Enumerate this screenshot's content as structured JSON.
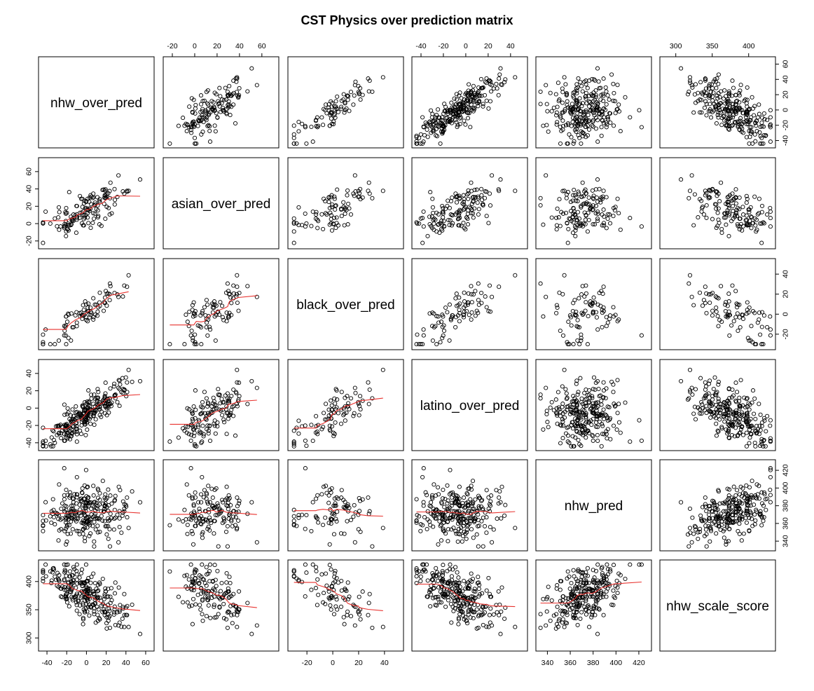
{
  "chart_data": {
    "type": "scatter",
    "title": "CST Physics over prediction matrix",
    "variables": [
      {
        "name": "nhw_over_pred",
        "range": [
          -45,
          65
        ],
        "ticks": [
          -40,
          -20,
          0,
          20,
          40,
          60
        ]
      },
      {
        "name": "asian_over_pred",
        "range": [
          -25,
          72
        ],
        "ticks": [
          -20,
          0,
          20,
          40,
          60
        ]
      },
      {
        "name": "black_over_pred",
        "range": [
          -32,
          52
        ],
        "ticks": [
          -20,
          0,
          20,
          40
        ]
      },
      {
        "name": "latino_over_pred",
        "range": [
          -45,
          52
        ],
        "ticks": [
          -40,
          -20,
          0,
          20,
          40
        ]
      },
      {
        "name": "nhw_pred",
        "range": [
          333,
          428
        ],
        "ticks": [
          340,
          360,
          380,
          400,
          420
        ]
      },
      {
        "name": "nhw_scale_score",
        "range": [
          283,
          432
        ],
        "ticks": [
          300,
          350,
          400
        ]
      }
    ],
    "axis_placement": {
      "top": [
        1,
        3,
        5
      ],
      "bottom": [
        0,
        2,
        4
      ],
      "right": [
        0,
        2,
        4
      ],
      "left": [
        1,
        3,
        5
      ]
    },
    "panels": {
      "upper": "points",
      "lower": "points with red smoothing curve"
    },
    "smoothing_color": "#e8322e",
    "point_color": "#000000",
    "sample_sizes": {
      "nhw_over_pred": 260,
      "asian_over_pred": 140,
      "black_over_pred": 85,
      "latino_over_pred": 260,
      "nhw_pred": 260,
      "nhw_scale_score": 260
    },
    "approx_relationships": [
      {
        "x": "nhw_over_pred",
        "y": "asian_over_pred",
        "slope": 0.65,
        "intercept": 16
      },
      {
        "x": "nhw_over_pred",
        "y": "black_over_pred",
        "slope": 0.72,
        "intercept": 2
      },
      {
        "x": "nhw_over_pred",
        "y": "latino_over_pred",
        "slope": 0.8,
        "intercept": -7
      },
      {
        "x": "nhw_over_pred",
        "y": "nhw_pred",
        "slope": 0.05,
        "intercept": 372
      },
      {
        "x": "nhw_over_pred",
        "y": "nhw_scale_score",
        "slope": -0.95,
        "intercept": 372
      },
      {
        "x": "asian_over_pred",
        "y": "black_over_pred",
        "slope": 0.6,
        "intercept": -3
      },
      {
        "x": "asian_over_pred",
        "y": "latino_over_pred",
        "slope": 0.55,
        "intercept": -14
      },
      {
        "x": "asian_over_pred",
        "y": "nhw_pred",
        "slope": 0.3,
        "intercept": 368
      },
      {
        "x": "asian_over_pred",
        "y": "nhw_scale_score",
        "slope": -0.3,
        "intercept": 376
      },
      {
        "x": "black_over_pred",
        "y": "latino_over_pred",
        "slope": 0.9,
        "intercept": -8
      },
      {
        "x": "black_over_pred",
        "y": "nhw_pred",
        "slope": 0.2,
        "intercept": 370
      },
      {
        "x": "black_over_pred",
        "y": "nhw_scale_score",
        "slope": -0.6,
        "intercept": 362
      },
      {
        "x": "latino_over_pred",
        "y": "nhw_pred",
        "slope": 0.02,
        "intercept": 371
      },
      {
        "x": "latino_over_pred",
        "y": "nhw_scale_score",
        "slope": -0.95,
        "intercept": 364
      },
      {
        "x": "nhw_pred",
        "y": "nhw_scale_score",
        "slope": 0.78,
        "intercept": 75
      }
    ]
  }
}
